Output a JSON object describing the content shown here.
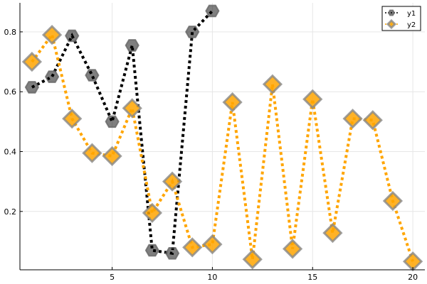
{
  "chart_data": {
    "type": "line",
    "title": "",
    "xlabel": "",
    "ylabel": "",
    "xlim": [
      0.4,
      20.6
    ],
    "ylim": [
      0.005,
      0.897
    ],
    "xticks": [
      5,
      10,
      15,
      20
    ],
    "yticks": [
      0.2,
      0.4,
      0.6,
      0.8
    ],
    "xtick_labels": [
      "5",
      "10",
      "15",
      "20"
    ],
    "ytick_labels": [
      "0.2",
      "0.4",
      "0.6",
      "0.8"
    ],
    "grid": true,
    "legend_position": "top-right",
    "series": [
      {
        "name": "y1",
        "color": "#000000",
        "marker": "hexagon",
        "x": [
          1,
          2,
          3,
          4,
          5,
          6,
          7,
          8,
          9,
          10
        ],
        "values": [
          0.615,
          0.65,
          0.787,
          0.655,
          0.5,
          0.755,
          0.07,
          0.06,
          0.8,
          0.87
        ]
      },
      {
        "name": "y2",
        "color": "#FFA500",
        "marker": "diamond",
        "x": [
          1,
          2,
          3,
          4,
          5,
          6,
          7,
          8,
          9,
          10,
          11,
          12,
          13,
          14,
          15,
          16,
          17,
          18,
          19,
          20
        ],
        "values": [
          0.7,
          0.79,
          0.51,
          0.395,
          0.385,
          0.545,
          0.195,
          0.3,
          0.08,
          0.09,
          0.565,
          0.04,
          0.625,
          0.075,
          0.575,
          0.128,
          0.51,
          0.505,
          0.235,
          0.033
        ]
      }
    ]
  }
}
